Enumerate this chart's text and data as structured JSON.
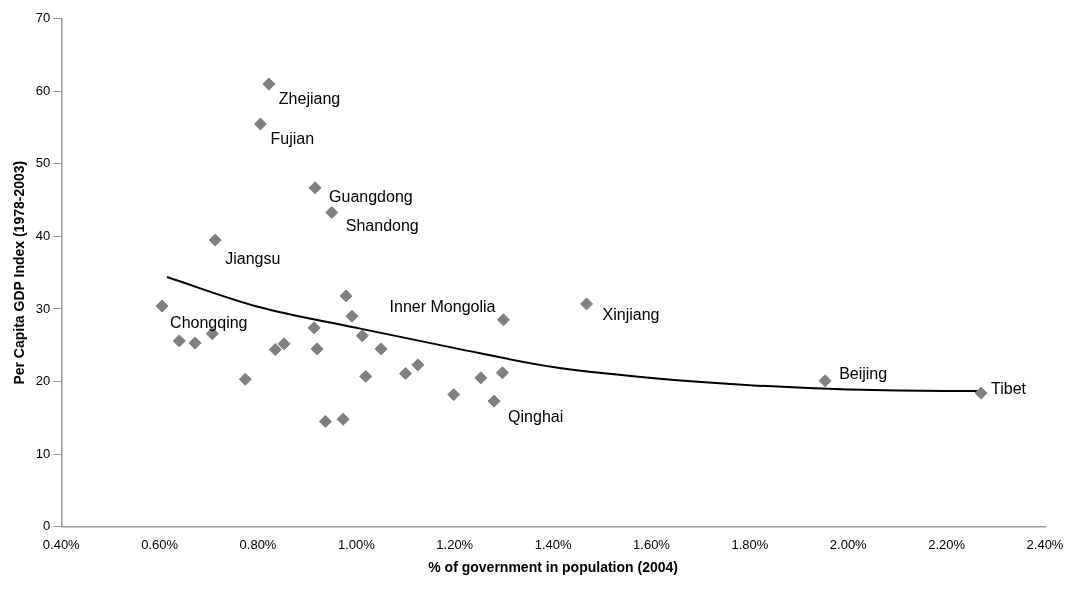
{
  "chart_data": {
    "type": "scatter",
    "xlabel": "% of government in population (2004)",
    "ylabel": "Per Capita GDP Index (1978-2003)",
    "xlim": [
      0.4,
      2.4
    ],
    "xticks": [
      {
        "value": 0.4,
        "label": "0.40%"
      },
      {
        "value": 0.6,
        "label": "0.60%"
      },
      {
        "value": 0.8,
        "label": "0.80%"
      },
      {
        "value": 1.0,
        "label": "1.00%"
      },
      {
        "value": 1.2,
        "label": "1.20%"
      },
      {
        "value": 1.4,
        "label": "1.40%"
      },
      {
        "value": 1.6,
        "label": "1.60%"
      },
      {
        "value": 1.8,
        "label": "1.80%"
      },
      {
        "value": 2.0,
        "label": "2.00%"
      },
      {
        "value": 2.2,
        "label": "2.20%"
      },
      {
        "value": 2.4,
        "label": "2.40%"
      }
    ],
    "ylim": [
      0,
      70
    ],
    "yticks": [
      0,
      10,
      20,
      30,
      40,
      50,
      60,
      70
    ],
    "grid": false,
    "legend": false,
    "series": [
      {
        "marker": "diamond",
        "color": "#808080",
        "x": [
          0.822,
          0.805,
          0.916,
          0.95,
          0.713,
          0.605,
          0.64,
          0.672,
          0.707,
          0.774,
          0.835,
          0.853,
          0.914,
          0.92,
          0.937,
          0.973,
          0.979,
          0.991,
          1.012,
          1.019,
          1.05,
          1.1,
          1.125,
          1.468,
          1.299,
          1.253,
          1.297,
          1.198,
          1.28,
          1.953,
          2.27
        ],
        "values": [
          61.0,
          55.5,
          46.7,
          43.3,
          39.5,
          30.4,
          25.6,
          25.3,
          26.6,
          20.3,
          24.4,
          25.2,
          27.4,
          24.5,
          14.5,
          14.8,
          31.8,
          29.0,
          26.3,
          20.7,
          24.5,
          21.1,
          22.3,
          30.7,
          28.5,
          20.5,
          21.2,
          18.2,
          17.3,
          20.1,
          18.4
        ]
      },
      {
        "type": "line",
        "marker": "none",
        "color": "#000000",
        "x": [
          0.615,
          0.8,
          1.0,
          1.2,
          1.4,
          1.6,
          1.8,
          2.0,
          2.2,
          2.27
        ],
        "values": [
          34.4,
          30.3,
          27.4,
          24.6,
          22.0,
          20.5,
          19.5,
          18.9,
          18.7,
          18.7
        ]
      }
    ],
    "annotations": [
      {
        "text": "Zhejiang",
        "x": 0.822,
        "y": 61.0
      },
      {
        "text": "Fujian",
        "x": 0.805,
        "y": 55.5
      },
      {
        "text": "Guangdong",
        "x": 0.916,
        "y": 46.7
      },
      {
        "text": "Shandong",
        "x": 0.95,
        "y": 43.3
      },
      {
        "text": "Jiangsu",
        "x": 0.713,
        "y": 39.5
      },
      {
        "text": "Chongqing",
        "x": 0.605,
        "y": 30.4
      },
      {
        "text": "Inner Mongolia",
        "x": 1.299,
        "y": 28.5
      },
      {
        "text": "Xinjiang",
        "x": 1.468,
        "y": 30.7
      },
      {
        "text": "Qinghai",
        "x": 1.28,
        "y": 17.3
      },
      {
        "text": "Beijing",
        "x": 1.953,
        "y": 20.1
      },
      {
        "text": "Tibet",
        "x": 2.27,
        "y": 18.4
      }
    ]
  }
}
